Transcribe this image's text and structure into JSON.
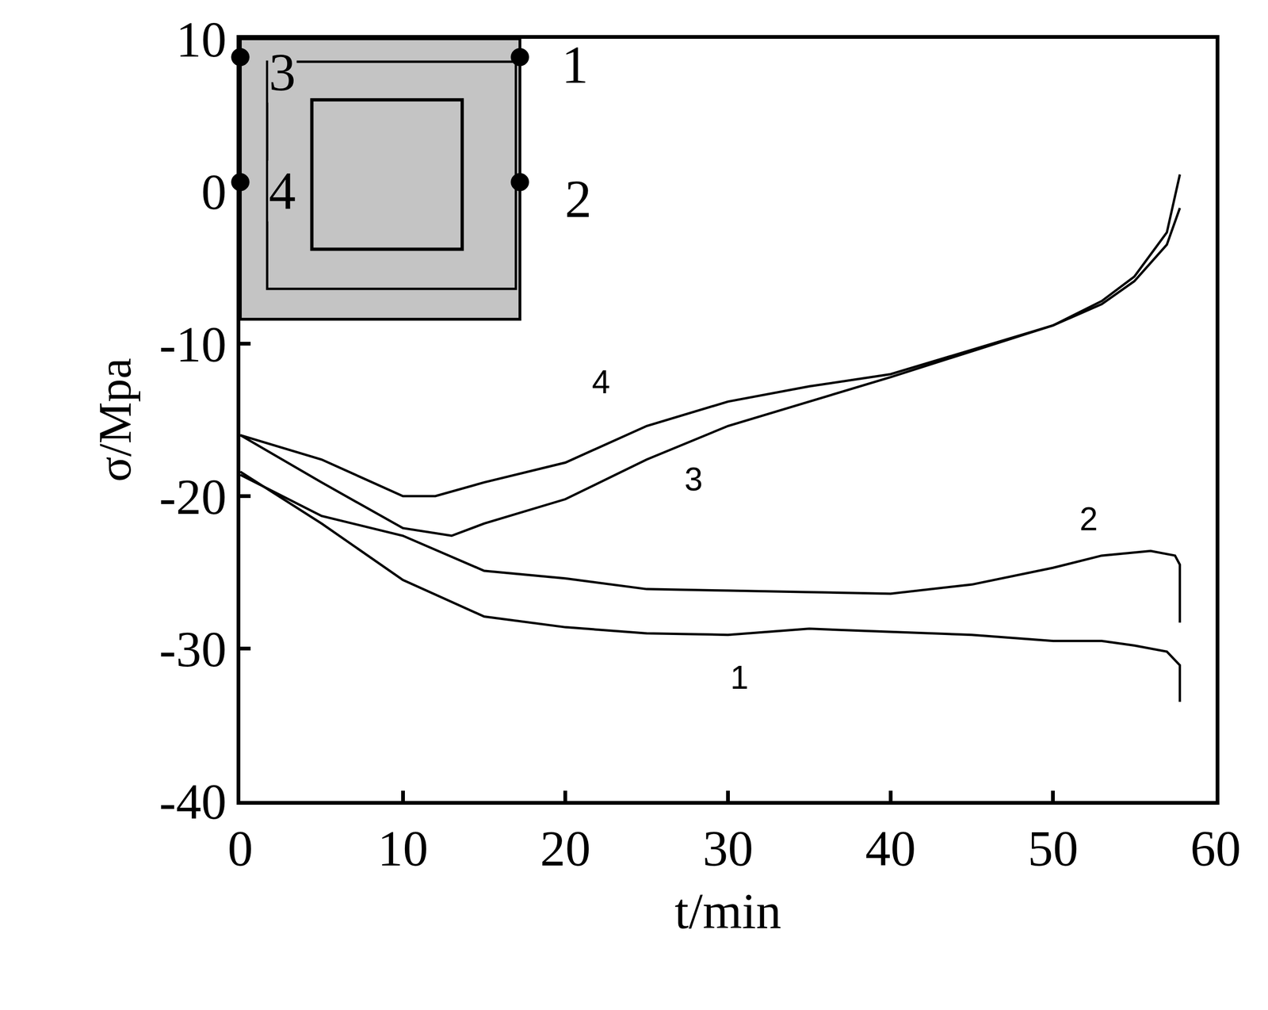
{
  "chart_data": {
    "type": "line",
    "x_label": "t/min",
    "y_label": "σ/Mpa",
    "xlim": [
      0,
      60
    ],
    "ylim": [
      -40,
      10
    ],
    "xticks": [
      0,
      10,
      20,
      30,
      40,
      50,
      60
    ],
    "yticks": [
      -40,
      -30,
      -20,
      -10,
      0,
      10
    ],
    "grid": false,
    "series": [
      {
        "color": "#000000",
        "x": [
          0,
          5,
          10,
          15,
          20,
          25,
          30,
          35,
          40,
          45,
          50,
          53,
          55,
          57,
          57.8,
          57.8
        ],
        "values": [
          -18.4,
          -21.8,
          -25.5,
          -27.9,
          -28.6,
          -29.0,
          -29.1,
          -28.7,
          -28.9,
          -29.1,
          -29.5,
          -29.5,
          -29.8,
          -30.2,
          -31.1,
          -33.5
        ]
      },
      {
        "color": "#000000",
        "x": [
          0,
          5,
          10,
          15,
          20,
          25,
          30,
          35,
          40,
          45,
          50,
          53,
          56,
          57.5,
          57.8,
          57.8
        ],
        "values": [
          -18.6,
          -21.3,
          -22.6,
          -24.9,
          -25.4,
          -26.1,
          -26.2,
          -26.3,
          -26.4,
          -25.8,
          -24.7,
          -23.9,
          -23.6,
          -23.9,
          -24.5,
          -28.3
        ]
      },
      {
        "color": "#000000",
        "x": [
          0,
          5,
          10,
          13,
          15,
          20,
          25,
          30,
          35,
          40,
          45,
          50,
          53,
          55,
          57,
          57.8
        ],
        "values": [
          -16.0,
          -19.1,
          -22.1,
          -22.6,
          -21.8,
          -20.2,
          -17.6,
          -15.4,
          -13.8,
          -12.2,
          -10.5,
          -8.8,
          -7.4,
          -5.9,
          -3.5,
          -1.1
        ]
      },
      {
        "color": "#000000",
        "x": [
          0,
          5,
          10,
          12,
          15,
          20,
          25,
          30,
          35,
          40,
          45,
          50,
          53,
          55,
          57,
          57.8
        ],
        "values": [
          -16.0,
          -17.6,
          -20.0,
          -20.0,
          -19.1,
          -17.8,
          -15.4,
          -13.8,
          -12.8,
          -12.0,
          -10.4,
          -8.8,
          -7.2,
          -5.6,
          -2.7,
          1.1
        ]
      }
    ],
    "annotations": [
      {
        "text": "4",
        "x": 22.2,
        "y": -12.5
      },
      {
        "text": "3",
        "x": 27.9,
        "y": -18.9
      },
      {
        "text": "2",
        "x": 52.2,
        "y": -21.5
      },
      {
        "text": "1",
        "x": 30.7,
        "y": -31.9
      }
    ],
    "inset": {
      "labels": [
        "1",
        "2",
        "3",
        "4"
      ]
    }
  }
}
